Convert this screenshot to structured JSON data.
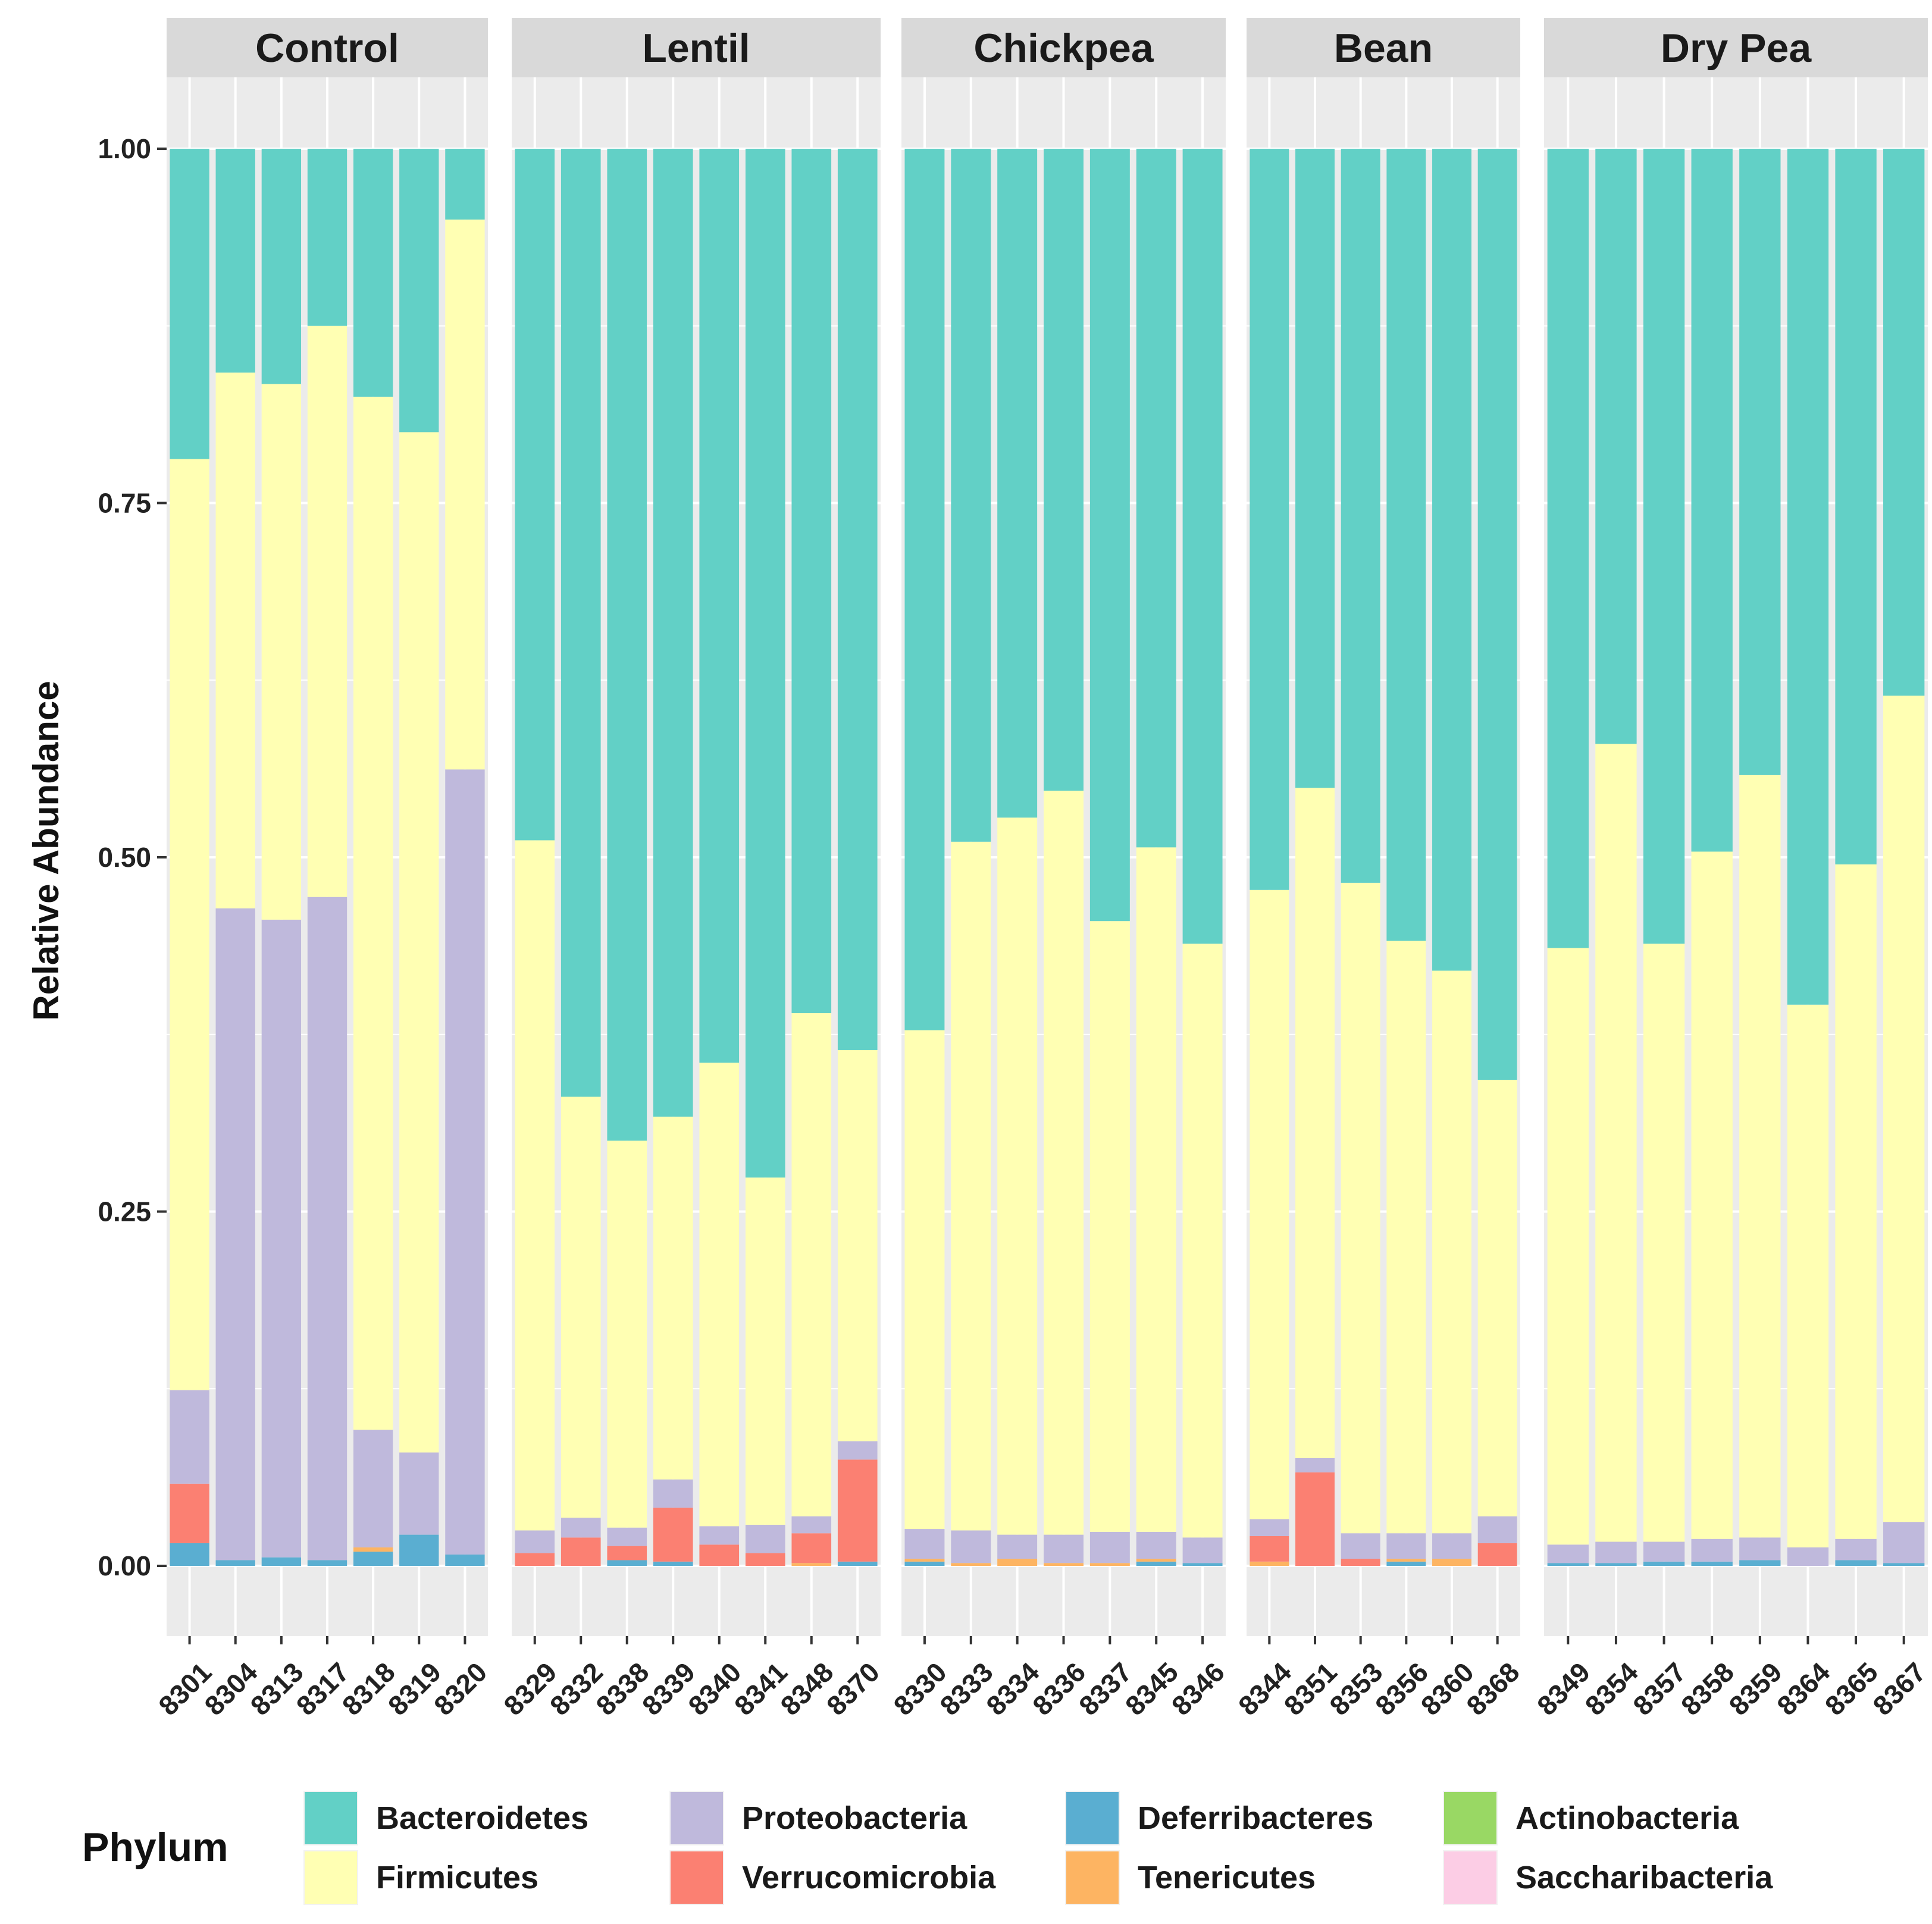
{
  "chart_data": {
    "type": "bar",
    "stacked": true,
    "ylabel": "Relative Abundance",
    "xlabel": "",
    "ylim": [
      0,
      1
    ],
    "yticks": [
      "0.00",
      "0.25",
      "0.50",
      "0.75",
      "1.00"
    ],
    "legend": {
      "title": "Phylum",
      "position": "bottom",
      "entries": [
        {
          "name": "Bacteroidetes",
          "color": "#62d0c6"
        },
        {
          "name": "Firmicutes",
          "color": "#ffffb3"
        },
        {
          "name": "Proteobacteria",
          "color": "#bfb9dc"
        },
        {
          "name": "Verrucomicrobia",
          "color": "#fb8072"
        },
        {
          "name": "Deferribacteres",
          "color": "#5aaed1"
        },
        {
          "name": "Tenericutes",
          "color": "#fdb462"
        },
        {
          "name": "Actinobacteria",
          "color": "#99d864"
        },
        {
          "name": "Saccharibacteria",
          "color": "#fccde5"
        }
      ]
    },
    "stack_order_bottom_to_top": [
      "Deferribacteres",
      "Tenericutes",
      "Verrucomicrobia",
      "Proteobacteria",
      "Firmicutes",
      "Bacteroidetes"
    ],
    "facets": [
      {
        "label": "Control",
        "samples": [
          {
            "id": "8301",
            "Deferribacteres": 0.016,
            "Tenericutes": 0.0,
            "Verrucomicrobia": 0.042,
            "Proteobacteria": 0.066,
            "Firmicutes": 0.657,
            "Bacteroidetes": 0.219
          },
          {
            "id": "8304",
            "Deferribacteres": 0.004,
            "Tenericutes": 0.0,
            "Verrucomicrobia": 0.0,
            "Proteobacteria": 0.46,
            "Firmicutes": 0.378,
            "Bacteroidetes": 0.158
          },
          {
            "id": "8313",
            "Deferribacteres": 0.006,
            "Tenericutes": 0.0,
            "Verrucomicrobia": 0.0,
            "Proteobacteria": 0.45,
            "Firmicutes": 0.378,
            "Bacteroidetes": 0.166
          },
          {
            "id": "8317",
            "Deferribacteres": 0.004,
            "Tenericutes": 0.0,
            "Verrucomicrobia": 0.0,
            "Proteobacteria": 0.468,
            "Firmicutes": 0.403,
            "Bacteroidetes": 0.125
          },
          {
            "id": "8318",
            "Deferribacteres": 0.01,
            "Tenericutes": 0.003,
            "Verrucomicrobia": 0.0,
            "Proteobacteria": 0.083,
            "Firmicutes": 0.729,
            "Bacteroidetes": 0.175
          },
          {
            "id": "8319",
            "Deferribacteres": 0.022,
            "Tenericutes": 0.0,
            "Verrucomicrobia": 0.0,
            "Proteobacteria": 0.058,
            "Firmicutes": 0.72,
            "Bacteroidetes": 0.2
          },
          {
            "id": "8320",
            "Deferribacteres": 0.008,
            "Tenericutes": 0.0,
            "Verrucomicrobia": 0.0,
            "Proteobacteria": 0.554,
            "Firmicutes": 0.388,
            "Bacteroidetes": 0.05
          }
        ]
      },
      {
        "label": "Lentil",
        "samples": [
          {
            "id": "8329",
            "Deferribacteres": 0.0,
            "Tenericutes": 0.0,
            "Verrucomicrobia": 0.009,
            "Proteobacteria": 0.016,
            "Firmicutes": 0.487,
            "Bacteroidetes": 0.488
          },
          {
            "id": "8332",
            "Deferribacteres": 0.0,
            "Tenericutes": 0.0,
            "Verrucomicrobia": 0.02,
            "Proteobacteria": 0.014,
            "Firmicutes": 0.297,
            "Bacteroidetes": 0.669
          },
          {
            "id": "8338",
            "Deferribacteres": 0.004,
            "Tenericutes": 0.0,
            "Verrucomicrobia": 0.01,
            "Proteobacteria": 0.013,
            "Firmicutes": 0.273,
            "Bacteroidetes": 0.7
          },
          {
            "id": "8339",
            "Deferribacteres": 0.003,
            "Tenericutes": 0.0,
            "Verrucomicrobia": 0.038,
            "Proteobacteria": 0.02,
            "Firmicutes": 0.256,
            "Bacteroidetes": 0.683
          },
          {
            "id": "8340",
            "Deferribacteres": 0.0,
            "Tenericutes": 0.0,
            "Verrucomicrobia": 0.015,
            "Proteobacteria": 0.013,
            "Firmicutes": 0.327,
            "Bacteroidetes": 0.645
          },
          {
            "id": "8341",
            "Deferribacteres": 0.0,
            "Tenericutes": 0.0,
            "Verrucomicrobia": 0.009,
            "Proteobacteria": 0.02,
            "Firmicutes": 0.245,
            "Bacteroidetes": 0.726
          },
          {
            "id": "8348",
            "Deferribacteres": 0.0,
            "Tenericutes": 0.002,
            "Verrucomicrobia": 0.021,
            "Proteobacteria": 0.012,
            "Firmicutes": 0.355,
            "Bacteroidetes": 0.61
          },
          {
            "id": "8370",
            "Deferribacteres": 0.003,
            "Tenericutes": 0.0,
            "Verrucomicrobia": 0.072,
            "Proteobacteria": 0.013,
            "Firmicutes": 0.276,
            "Bacteroidetes": 0.636
          }
        ]
      },
      {
        "label": "Chickpea",
        "samples": [
          {
            "id": "8330",
            "Deferribacteres": 0.003,
            "Tenericutes": 0.002,
            "Verrucomicrobia": 0.0,
            "Proteobacteria": 0.021,
            "Firmicutes": 0.352,
            "Bacteroidetes": 0.622
          },
          {
            "id": "8333",
            "Deferribacteres": 0.0,
            "Tenericutes": 0.002,
            "Verrucomicrobia": 0.0,
            "Proteobacteria": 0.023,
            "Firmicutes": 0.486,
            "Bacteroidetes": 0.489
          },
          {
            "id": "8334",
            "Deferribacteres": 0.0,
            "Tenericutes": 0.005,
            "Verrucomicrobia": 0.0,
            "Proteobacteria": 0.017,
            "Firmicutes": 0.506,
            "Bacteroidetes": 0.472
          },
          {
            "id": "8336",
            "Deferribacteres": 0.0,
            "Tenericutes": 0.002,
            "Verrucomicrobia": 0.0,
            "Proteobacteria": 0.02,
            "Firmicutes": 0.525,
            "Bacteroidetes": 0.453
          },
          {
            "id": "8337",
            "Deferribacteres": 0.0,
            "Tenericutes": 0.002,
            "Verrucomicrobia": 0.0,
            "Proteobacteria": 0.022,
            "Firmicutes": 0.431,
            "Bacteroidetes": 0.545
          },
          {
            "id": "8345",
            "Deferribacteres": 0.003,
            "Tenericutes": 0.002,
            "Verrucomicrobia": 0.0,
            "Proteobacteria": 0.019,
            "Firmicutes": 0.483,
            "Bacteroidetes": 0.493
          },
          {
            "id": "8346",
            "Deferribacteres": 0.002,
            "Tenericutes": 0.0,
            "Verrucomicrobia": 0.0,
            "Proteobacteria": 0.018,
            "Firmicutes": 0.419,
            "Bacteroidetes": 0.561
          }
        ]
      },
      {
        "label": "Bean",
        "samples": [
          {
            "id": "8344",
            "Deferribacteres": 0.0,
            "Tenericutes": 0.003,
            "Verrucomicrobia": 0.018,
            "Proteobacteria": 0.012,
            "Firmicutes": 0.444,
            "Bacteroidetes": 0.523
          },
          {
            "id": "8351",
            "Deferribacteres": 0.0,
            "Tenericutes": 0.0,
            "Verrucomicrobia": 0.066,
            "Proteobacteria": 0.01,
            "Firmicutes": 0.473,
            "Bacteroidetes": 0.451
          },
          {
            "id": "8353",
            "Deferribacteres": 0.0,
            "Tenericutes": 0.0,
            "Verrucomicrobia": 0.005,
            "Proteobacteria": 0.018,
            "Firmicutes": 0.459,
            "Bacteroidetes": 0.518
          },
          {
            "id": "8356",
            "Deferribacteres": 0.003,
            "Tenericutes": 0.002,
            "Verrucomicrobia": 0.0,
            "Proteobacteria": 0.018,
            "Firmicutes": 0.418,
            "Bacteroidetes": 0.559
          },
          {
            "id": "8360",
            "Deferribacteres": 0.0,
            "Tenericutes": 0.005,
            "Verrucomicrobia": 0.0,
            "Proteobacteria": 0.018,
            "Firmicutes": 0.397,
            "Bacteroidetes": 0.58
          },
          {
            "id": "8368",
            "Deferribacteres": 0.0,
            "Tenericutes": 0.0,
            "Verrucomicrobia": 0.016,
            "Proteobacteria": 0.019,
            "Firmicutes": 0.308,
            "Bacteroidetes": 0.657
          }
        ]
      },
      {
        "label": "Dry Pea",
        "samples": [
          {
            "id": "8349",
            "Deferribacteres": 0.002,
            "Tenericutes": 0.0,
            "Verrucomicrobia": 0.0,
            "Proteobacteria": 0.013,
            "Firmicutes": 0.421,
            "Bacteroidetes": 0.564
          },
          {
            "id": "8354",
            "Deferribacteres": 0.002,
            "Tenericutes": 0.0,
            "Verrucomicrobia": 0.0,
            "Proteobacteria": 0.015,
            "Firmicutes": 0.563,
            "Bacteroidetes": 0.42
          },
          {
            "id": "8357",
            "Deferribacteres": 0.003,
            "Tenericutes": 0.0,
            "Verrucomicrobia": 0.0,
            "Proteobacteria": 0.014,
            "Firmicutes": 0.422,
            "Bacteroidetes": 0.561
          },
          {
            "id": "8358",
            "Deferribacteres": 0.003,
            "Tenericutes": 0.0,
            "Verrucomicrobia": 0.0,
            "Proteobacteria": 0.016,
            "Firmicutes": 0.485,
            "Bacteroidetes": 0.496
          },
          {
            "id": "8359",
            "Deferribacteres": 0.004,
            "Tenericutes": 0.0,
            "Verrucomicrobia": 0.0,
            "Proteobacteria": 0.016,
            "Firmicutes": 0.538,
            "Bacteroidetes": 0.442
          },
          {
            "id": "8364",
            "Deferribacteres": 0.0,
            "Tenericutes": 0.0,
            "Verrucomicrobia": 0.0,
            "Proteobacteria": 0.013,
            "Firmicutes": 0.383,
            "Bacteroidetes": 0.604
          },
          {
            "id": "8365",
            "Deferribacteres": 0.004,
            "Tenericutes": 0.0,
            "Verrucomicrobia": 0.0,
            "Proteobacteria": 0.015,
            "Firmicutes": 0.476,
            "Bacteroidetes": 0.505
          },
          {
            "id": "8367",
            "Deferribacteres": 0.002,
            "Tenericutes": 0.0,
            "Verrucomicrobia": 0.0,
            "Proteobacteria": 0.029,
            "Firmicutes": 0.583,
            "Bacteroidetes": 0.386
          }
        ]
      }
    ]
  }
}
